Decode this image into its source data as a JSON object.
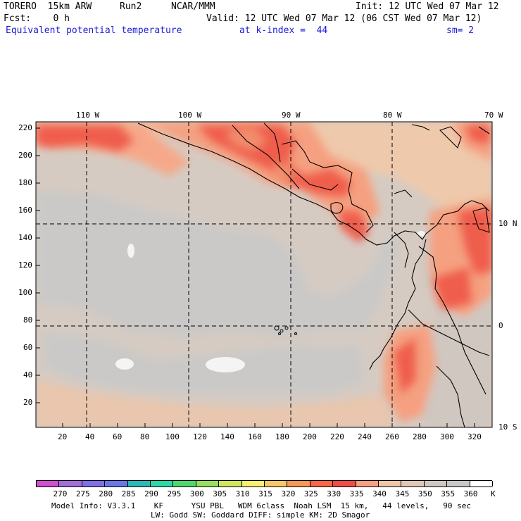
{
  "header": {
    "model": "TORERO  15km ARW",
    "run": "Run2",
    "org": "NCAR/MMM",
    "init": "Init: 12 UTC Wed 07 Mar 12",
    "fcst": "Fcst:    0 h",
    "valid": "Valid: 12 UTC Wed 07 Mar 12 (06 CST Wed 07 Mar 12)",
    "field": "Equivalent potential temperature",
    "level": "at k-index =  44",
    "smooth": "sm= 2"
  },
  "map": {
    "lon_labels": [
      "110 W",
      "100 W",
      "90 W",
      "80 W",
      "70 W"
    ],
    "lat_labels": [
      "10 N",
      "0",
      "10 S"
    ],
    "y_ticks": [
      "220",
      "200",
      "180",
      "160",
      "140",
      "120",
      "100",
      "80",
      "60",
      "40",
      "20"
    ],
    "x_ticks": [
      "20",
      "40",
      "60",
      "80",
      "100",
      "120",
      "140",
      "160",
      "180",
      "200",
      "220",
      "240",
      "260",
      "280",
      "300",
      "320"
    ]
  },
  "colorbar": {
    "labels": [
      "270",
      "275",
      "280",
      "285",
      "290",
      "295",
      "300",
      "305",
      "310",
      "315",
      "320",
      "325",
      "330",
      "335",
      "340",
      "345",
      "350",
      "355",
      "360"
    ],
    "unit": "K",
    "colors": [
      "#d050d0",
      "#a070d8",
      "#8070e8",
      "#6878e8",
      "#30b8b8",
      "#30d8a8",
      "#50d870",
      "#98e060",
      "#d0e860",
      "#f8f070",
      "#f8c868",
      "#f89858",
      "#f86848",
      "#f04c48",
      "#f8a080",
      "#f0c8a8",
      "#e0c8b8",
      "#d0c8c0",
      "#c8c8c8",
      "#ffffff"
    ]
  },
  "footer": {
    "line1": "Model Info: V3.3.1    KF      YSU PBL   WDM 6class  Noah LSM  15 km,   44 levels,   90 sec",
    "line2": "LW: Godd SW: Goddard DIFF: simple KM: 2D Smagor"
  }
}
